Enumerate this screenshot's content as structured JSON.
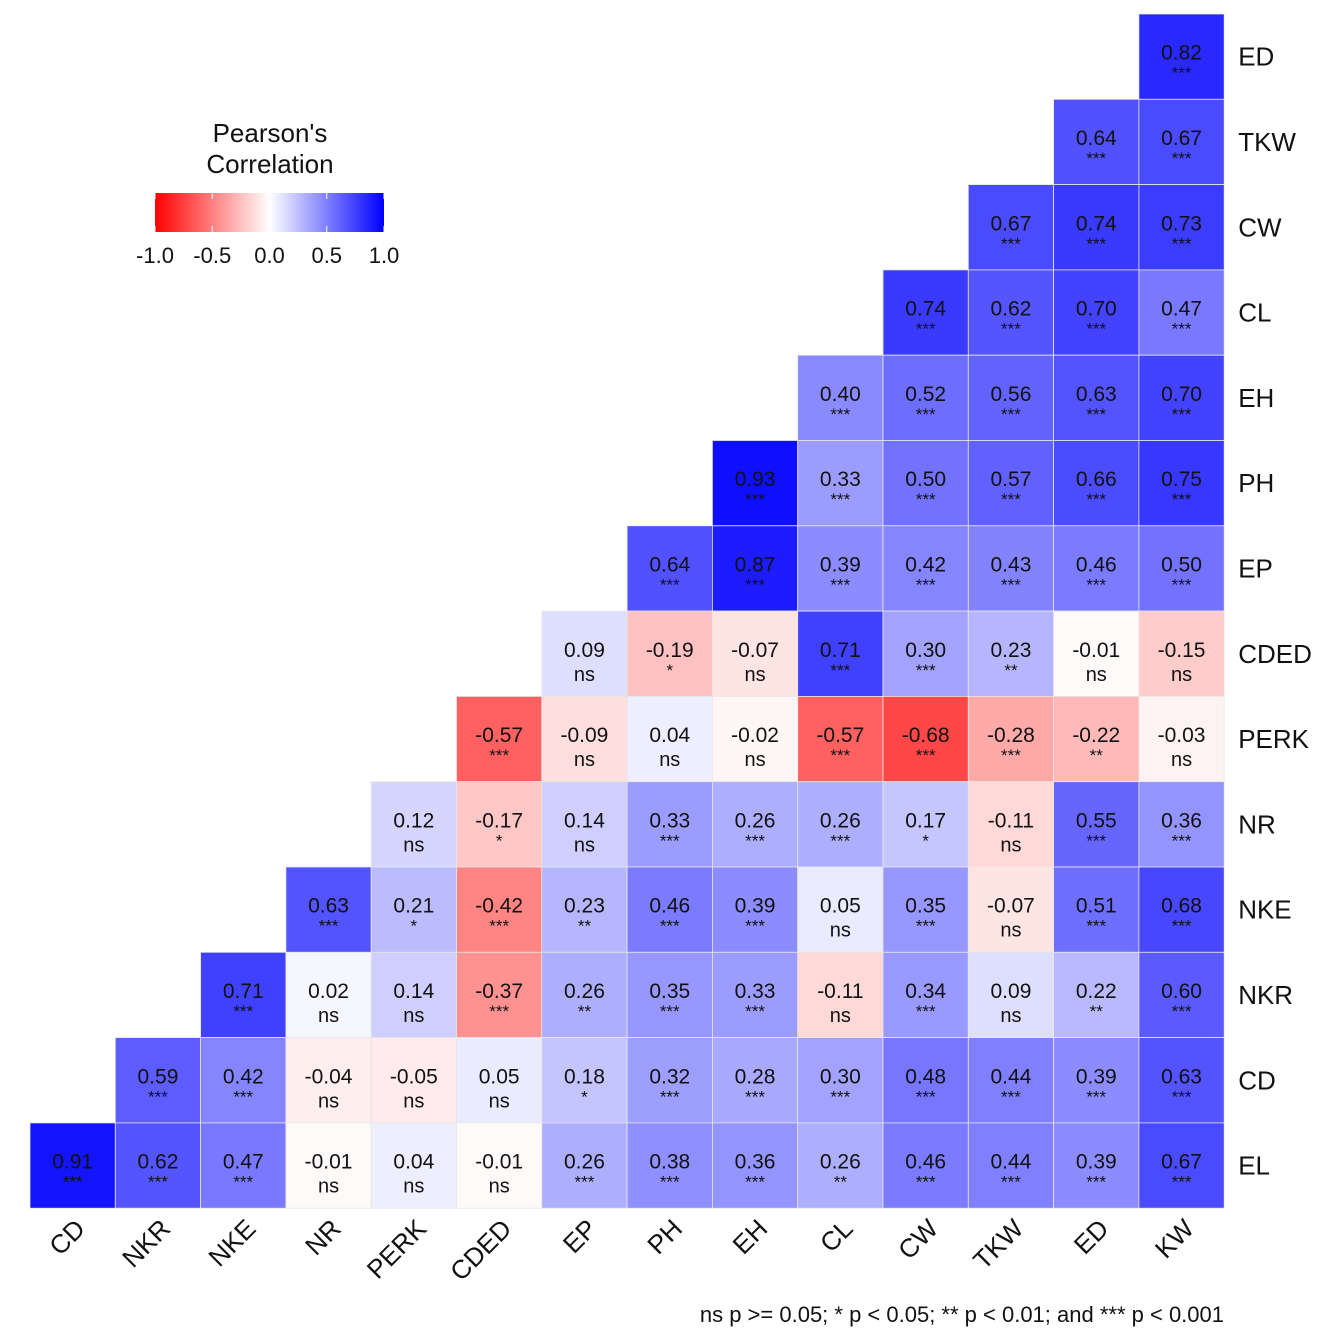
{
  "chart_data": {
    "type": "heatmap",
    "x_labels": [
      "CD",
      "NKR",
      "NKE",
      "NR",
      "PERK",
      "CDED",
      "EP",
      "PH",
      "EH",
      "CL",
      "CW",
      "TKW",
      "ED",
      "KW"
    ],
    "y_labels": [
      "ED",
      "TKW",
      "CW",
      "CL",
      "EH",
      "PH",
      "EP",
      "CDED",
      "PERK",
      "NR",
      "NKE",
      "NKR",
      "CD",
      "EL"
    ],
    "rows": [
      {
        "row": "ED",
        "values": [
          0.82
        ],
        "sig": [
          "***"
        ]
      },
      {
        "row": "TKW",
        "values": [
          0.64,
          0.67
        ],
        "sig": [
          "***",
          "***"
        ]
      },
      {
        "row": "CW",
        "values": [
          0.67,
          0.74,
          0.73
        ],
        "sig": [
          "***",
          "***",
          "***"
        ]
      },
      {
        "row": "CL",
        "values": [
          0.74,
          0.62,
          0.7,
          0.47
        ],
        "sig": [
          "***",
          "***",
          "***",
          "***"
        ]
      },
      {
        "row": "EH",
        "values": [
          0.4,
          0.52,
          0.56,
          0.63,
          0.7
        ],
        "sig": [
          "***",
          "***",
          "***",
          "***",
          "***"
        ]
      },
      {
        "row": "PH",
        "values": [
          0.93,
          0.33,
          0.5,
          0.57,
          0.66,
          0.75
        ],
        "sig": [
          "***",
          "***",
          "***",
          "***",
          "***",
          "***"
        ]
      },
      {
        "row": "EP",
        "values": [
          0.64,
          0.87,
          0.39,
          0.42,
          0.43,
          0.46,
          0.5
        ],
        "sig": [
          "***",
          "***",
          "***",
          "***",
          "***",
          "***",
          "***"
        ]
      },
      {
        "row": "CDED",
        "values": [
          0.09,
          -0.19,
          -0.07,
          0.71,
          0.3,
          0.23,
          -0.01,
          -0.15
        ],
        "sig": [
          "ns",
          "*",
          "ns",
          "***",
          "***",
          "**",
          "ns",
          "ns"
        ]
      },
      {
        "row": "PERK",
        "values": [
          -0.57,
          -0.09,
          0.04,
          -0.02,
          -0.57,
          -0.68,
          -0.28,
          -0.22,
          -0.03
        ],
        "sig": [
          "***",
          "ns",
          "ns",
          "ns",
          "***",
          "***",
          "***",
          "**",
          "ns"
        ]
      },
      {
        "row": "NR",
        "values": [
          0.12,
          -0.17,
          0.14,
          0.33,
          0.26,
          0.26,
          0.17,
          -0.11,
          0.55,
          0.36
        ],
        "sig": [
          "ns",
          "*",
          "ns",
          "***",
          "***",
          "***",
          "*",
          "ns",
          "***",
          "***"
        ]
      },
      {
        "row": "NKE",
        "values": [
          0.63,
          0.21,
          -0.42,
          0.23,
          0.46,
          0.39,
          0.05,
          0.35,
          -0.07,
          0.51,
          0.68
        ],
        "sig": [
          "***",
          "*",
          "***",
          "**",
          "***",
          "***",
          "ns",
          "***",
          "ns",
          "***",
          "***"
        ]
      },
      {
        "row": "NKR",
        "values": [
          0.71,
          0.02,
          0.14,
          -0.37,
          0.26,
          0.35,
          0.33,
          -0.11,
          0.34,
          0.09,
          0.22,
          0.6
        ],
        "sig": [
          "***",
          "ns",
          "ns",
          "***",
          "**",
          "***",
          "***",
          "ns",
          "***",
          "ns",
          "**",
          "***"
        ]
      },
      {
        "row": "CD",
        "values": [
          0.59,
          0.42,
          -0.04,
          -0.05,
          0.05,
          0.18,
          0.32,
          0.28,
          0.3,
          0.48,
          0.44,
          0.39,
          0.63
        ],
        "sig": [
          "***",
          "***",
          "ns",
          "ns",
          "ns",
          "*",
          "***",
          "***",
          "***",
          "***",
          "***",
          "***",
          "***"
        ]
      },
      {
        "row": "EL",
        "values": [
          0.91,
          0.62,
          0.47,
          -0.01,
          0.04,
          -0.01,
          0.26,
          0.38,
          0.36,
          0.26,
          0.46,
          0.44,
          0.39,
          0.67
        ],
        "sig": [
          "***",
          "***",
          "***",
          "ns",
          "ns",
          "ns",
          "***",
          "***",
          "***",
          "**",
          "***",
          "***",
          "***",
          "***"
        ]
      }
    ],
    "legend": {
      "title_line1": "Pearson's",
      "title_line2": "Correlation",
      "ticks": [
        "-1.0",
        "-0.5",
        "0.0",
        "0.5",
        "1.0"
      ],
      "range": [
        -1,
        1
      ],
      "colors": {
        "low": "#ff0000",
        "mid": "#ffffff",
        "high": "#0000ff"
      },
      "placement": "top-left"
    },
    "footnote": "ns p >= 0.05; * p < 0.05; ** p < 0.01; and *** p < 0.001"
  }
}
